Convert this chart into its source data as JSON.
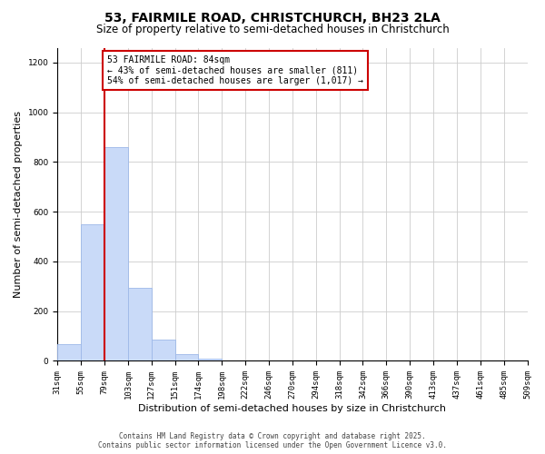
{
  "title": "53, FAIRMILE ROAD, CHRISTCHURCH, BH23 2LA",
  "subtitle": "Size of property relative to semi-detached houses in Christchurch",
  "xlabel": "Distribution of semi-detached houses by size in Christchurch",
  "ylabel": "Number of semi-detached properties",
  "bar_values": [
    68,
    550,
    860,
    295,
    85,
    28,
    10,
    0,
    0,
    0,
    0,
    0,
    0,
    0,
    0,
    0,
    0,
    0,
    0,
    0
  ],
  "bin_labels": [
    "31sqm",
    "55sqm",
    "79sqm",
    "103sqm",
    "127sqm",
    "151sqm",
    "174sqm",
    "198sqm",
    "222sqm",
    "246sqm",
    "270sqm",
    "294sqm",
    "318sqm",
    "342sqm",
    "366sqm",
    "390sqm",
    "413sqm",
    "437sqm",
    "461sqm",
    "485sqm",
    "509sqm"
  ],
  "bar_color": "#c9daf8",
  "bar_edge_color": "#9db8e8",
  "grid_color": "#cccccc",
  "vline_x": 2,
  "vline_color": "#cc0000",
  "annotation_box_text": "53 FAIRMILE ROAD: 84sqm\n← 43% of semi-detached houses are smaller (811)\n54% of semi-detached houses are larger (1,017) →",
  "annotation_box_color": "#cc0000",
  "annotation_box_bg": "#ffffff",
  "ylim": [
    0,
    1260
  ],
  "yticks": [
    0,
    200,
    400,
    600,
    800,
    1000,
    1200
  ],
  "footer_line1": "Contains HM Land Registry data © Crown copyright and database right 2025.",
  "footer_line2": "Contains public sector information licensed under the Open Government Licence v3.0.",
  "bg_color": "#ffffff",
  "title_fontsize": 10,
  "subtitle_fontsize": 8.5,
  "tick_fontsize": 6.5,
  "axis_label_fontsize": 8,
  "footer_fontsize": 5.5
}
